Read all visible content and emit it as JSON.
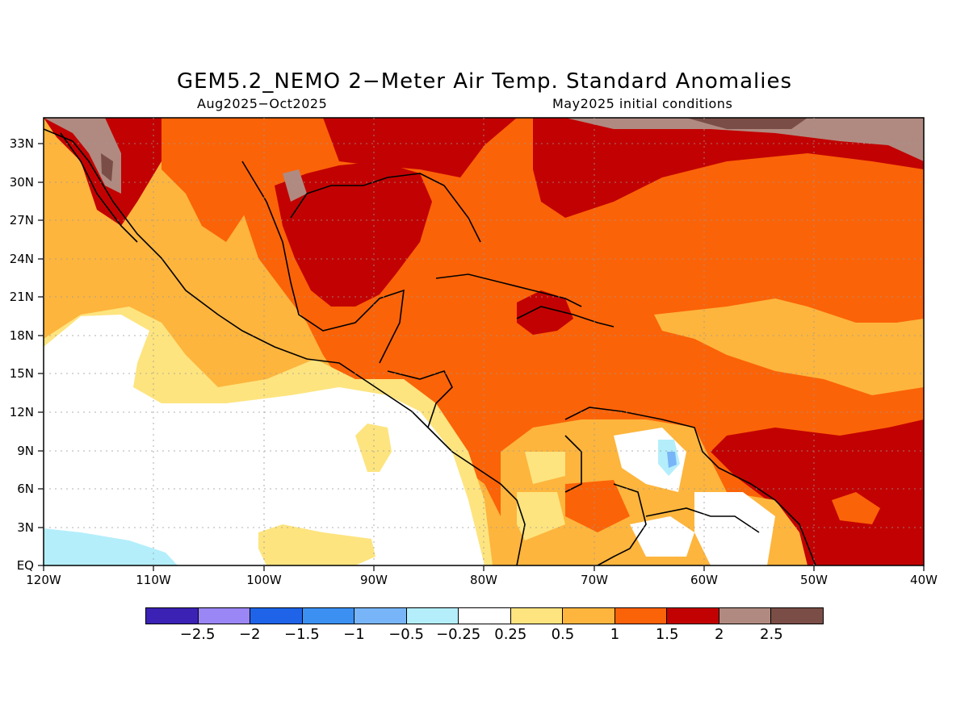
{
  "title": "GEM5.2_NEMO 2−Meter Air Temp. Standard Anomalies",
  "subtitle_left": "Aug2025−Oct2025",
  "subtitle_right": "May2025 initial conditions",
  "axes": {
    "lon_labels": [
      "120W",
      "110W",
      "100W",
      "90W",
      "80W",
      "70W",
      "60W",
      "50W",
      "40W"
    ],
    "lat_labels": [
      "EQ",
      "3N",
      "6N",
      "9N",
      "12N",
      "15N",
      "18N",
      "21N",
      "24N",
      "27N",
      "30N",
      "33N"
    ]
  },
  "colorbar": {
    "colors": [
      "#3b22b5",
      "#9b86f5",
      "#1f64e8",
      "#3c90f2",
      "#78b5f8",
      "#b4eefb",
      "#ffffff",
      "#fde47f",
      "#fdb53d",
      "#fb6308",
      "#c20202",
      "#b08a80",
      "#7a4e46"
    ],
    "labels": [
      "−2.5",
      "−2",
      "−1.5",
      "−1",
      "−0.5",
      "−0.25",
      "0.25",
      "0.5",
      "1",
      "1.5",
      "2",
      "2.5"
    ]
  }
}
